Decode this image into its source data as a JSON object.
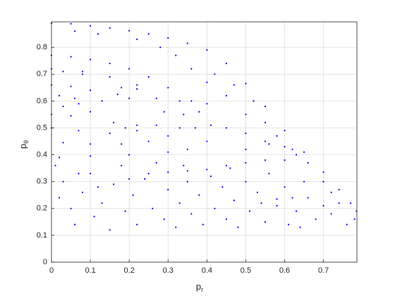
{
  "chart_data": {
    "type": "scatter",
    "xlabel": [
      "p",
      "r"
    ],
    "ylabel": [
      "p",
      "θ"
    ],
    "xlim": [
      0,
      0.786
    ],
    "ylim": [
      0,
      0.895
    ],
    "xticks": [
      0,
      0.1,
      0.2,
      0.3,
      0.4,
      0.5,
      0.6,
      0.7
    ],
    "yticks": [
      0,
      0.1,
      0.2,
      0.3,
      0.4,
      0.5,
      0.6,
      0.7,
      0.8
    ],
    "grid": true,
    "series": [
      {
        "color": "#0000ff",
        "x": [
          0,
          0.05,
          0.1,
          0.15,
          0.2,
          0.25,
          0.3,
          0.35,
          0.4,
          0.45,
          0.5,
          0.55,
          0.6,
          0.65,
          0.7,
          0.74,
          0.77,
          0.785,
          0.78,
          0.76,
          0.42,
          0.47,
          0.52,
          0.55,
          0.58,
          0.62,
          0.66,
          0.7,
          0.72,
          0.5,
          0.45,
          0.4,
          0.36,
          0.32,
          0.28,
          0.22,
          0.12,
          0.06,
          0.6,
          0.56,
          0,
          0.05,
          0.1,
          0.15,
          0.2,
          0.25,
          0.3,
          0.33,
          0.34,
          0.33,
          0.3,
          0.25,
          0.18,
          0.1,
          0.03,
          0,
          0.08,
          0.15,
          0.22,
          0.27,
          0.29,
          0.27,
          0.22,
          0.15,
          0.07,
          0,
          0,
          0.05,
          0.1,
          0.13,
          0.1,
          0.05,
          0,
          0.02,
          0.06,
          0.07,
          0.03,
          0.18,
          0.22,
          0.2,
          0.17,
          0.16,
          0.22,
          0.19,
          0.36,
          0.4,
          0.38,
          0.37,
          0.41,
          0.03,
          0.08,
          0.45,
          0.5,
          0.55,
          0.6,
          0.63,
          0.5,
          0.4,
          0.35,
          0.3,
          0.2,
          0.1,
          0.02,
          0.25,
          0.3,
          0.35,
          0.4,
          0.45,
          0.5,
          0.55,
          0.62,
          0.58,
          0.01,
          0.03,
          0.05,
          0.06,
          0.08,
          0.1,
          0.11,
          0.13,
          0.15,
          0.16,
          0.18,
          0.19,
          0.21,
          0.22,
          0.24,
          0.26,
          0.27,
          0.29,
          0.3,
          0.32,
          0.33,
          0.35,
          0.36,
          0.38,
          0.39,
          0.41,
          0.42,
          0.44,
          0.45,
          0.47,
          0.48,
          0.5,
          0.51,
          0.53,
          0.55,
          0.56,
          0.58,
          0.6,
          0.61,
          0.63,
          0.65,
          0.66,
          0.68,
          0.7,
          0.72,
          0.74,
          0.02,
          0.07,
          0.12,
          0.2,
          0.34,
          0.46,
          0.54,
          0.64
        ],
        "values": [
          0.89,
          0.888,
          0.88,
          0.872,
          0.862,
          0.85,
          0.835,
          0.815,
          0.79,
          0.74,
          0.665,
          0.58,
          0.49,
          0.41,
          0.335,
          0.27,
          0.22,
          0.19,
          0.16,
          0.14,
          0.7,
          0.66,
          0.6,
          0.52,
          0.47,
          0.42,
          0.37,
          0.3,
          0.26,
          0.55,
          0.62,
          0.67,
          0.72,
          0.77,
          0.8,
          0.83,
          0.85,
          0.86,
          0.38,
          0.44,
          0.77,
          0.765,
          0.755,
          0.74,
          0.72,
          0.69,
          0.65,
          0.6,
          0.55,
          0.5,
          0.47,
          0.45,
          0.44,
          0.44,
          0.445,
          0.72,
          0.71,
          0.69,
          0.66,
          0.61,
          0.56,
          0.51,
          0.49,
          0.48,
          0.49,
          0.5,
          0.66,
          0.655,
          0.64,
          0.6,
          0.56,
          0.545,
          0.55,
          0.62,
          0.61,
          0.59,
          0.58,
          0.65,
          0.645,
          0.61,
          0.625,
          0.52,
          0.51,
          0.5,
          0.6,
          0.59,
          0.56,
          0.5,
          0.51,
          0.71,
          0.7,
          0.5,
          0.48,
          0.45,
          0.43,
          0.4,
          0.42,
          0.45,
          0.42,
          0.41,
          0.4,
          0.395,
          0.39,
          0.33,
          0.335,
          0.34,
          0.345,
          0.36,
          0.37,
          0.38,
          0.24,
          0.235,
          0.36,
          0.3,
          0.2,
          0.14,
          0.26,
          0.33,
          0.17,
          0.22,
          0.12,
          0.29,
          0.36,
          0.19,
          0.25,
          0.14,
          0.31,
          0.2,
          0.37,
          0.16,
          0.27,
          0.13,
          0.22,
          0.3,
          0.18,
          0.25,
          0.14,
          0.32,
          0.2,
          0.28,
          0.16,
          0.23,
          0.13,
          0.3,
          0.19,
          0.26,
          0.15,
          0.33,
          0.21,
          0.28,
          0.14,
          0.19,
          0.3,
          0.24,
          0.16,
          0.21,
          0.18,
          0.22,
          0.24,
          0.33,
          0.28,
          0.31,
          0.36,
          0.35,
          0.22,
          0.13
        ]
      }
    ]
  }
}
